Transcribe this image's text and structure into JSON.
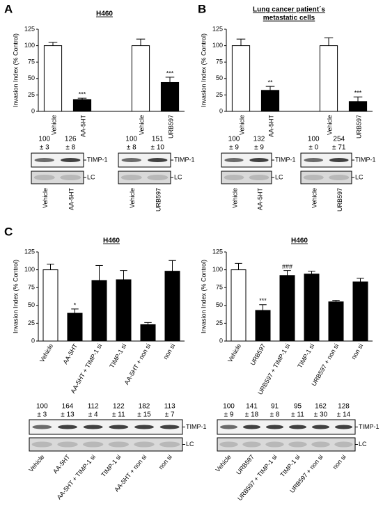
{
  "panel_labels": [
    "A",
    "B",
    "C"
  ],
  "chart_data": [
    {
      "type": "bar",
      "title": "H460",
      "ylabel": "Invasion Index (% Control)",
      "categories": [
        "Vehicle",
        "AA-5HT",
        null,
        "Vehicle",
        "URB597"
      ],
      "values": [
        100,
        18,
        null,
        100,
        44
      ],
      "errors": [
        5,
        2,
        null,
        10,
        8
      ],
      "colors": [
        "#ffffff",
        "#000000",
        null,
        "#ffffff",
        "#000000"
      ],
      "annotations": [
        null,
        "***",
        null,
        null,
        "***"
      ],
      "ylim": [
        0,
        125
      ],
      "yticks": [
        0,
        25,
        50,
        75,
        100,
        125
      ]
    },
    {
      "type": "bar",
      "title": [
        "Lung cancer patient´s",
        "metastatic cells"
      ],
      "ylabel": "Invasion Index (% Control)",
      "categories": [
        "Vehicle",
        "AA-5HT",
        null,
        "Vehicle",
        "URB597"
      ],
      "values": [
        100,
        32,
        null,
        100,
        15
      ],
      "errors": [
        10,
        6,
        null,
        12,
        7
      ],
      "colors": [
        "#ffffff",
        "#000000",
        null,
        "#ffffff",
        "#000000"
      ],
      "annotations": [
        null,
        "**",
        null,
        null,
        "***"
      ],
      "ylim": [
        0,
        125
      ],
      "yticks": [
        0,
        25,
        50,
        75,
        100,
        125
      ]
    },
    {
      "type": "bar",
      "title": "H460",
      "ylabel": "Invasion Index (% Control)",
      "categories": [
        "Vehicle",
        "AA-5HT",
        "AA-5HT + TIMP-1 si",
        "TIMP-1 si",
        "AA-5HT + non si",
        "non si"
      ],
      "values": [
        100,
        39,
        85,
        86,
        23,
        98
      ],
      "errors": [
        8,
        6,
        21,
        13,
        3,
        15
      ],
      "colors": [
        "#ffffff",
        "#000000",
        "#000000",
        "#000000",
        "#000000",
        "#000000"
      ],
      "annotations": [
        null,
        "*",
        null,
        null,
        null,
        null
      ],
      "ylim": [
        0,
        125
      ],
      "yticks": [
        0,
        25,
        50,
        75,
        100,
        125
      ]
    },
    {
      "type": "bar",
      "title": "H460",
      "ylabel": "Invasion Index (% Control)",
      "categories": [
        "Vehicle",
        "URB597",
        "URB597 + TIMP-1 si",
        "TIMP-1 si",
        "URB597 + non si",
        "non si"
      ],
      "values": [
        100,
        43,
        92,
        94,
        55,
        83
      ],
      "errors": [
        9,
        8,
        7,
        4,
        2,
        5
      ],
      "colors": [
        "#ffffff",
        "#000000",
        "#000000",
        "#000000",
        "#000000",
        "#000000"
      ],
      "annotations": [
        null,
        "***",
        "###",
        null,
        null,
        null
      ],
      "ylim": [
        0,
        125
      ],
      "yticks": [
        0,
        25,
        50,
        75,
        100,
        125
      ]
    }
  ],
  "blots": [
    {
      "lanes": [
        "Vehicle",
        "AA-5HT"
      ],
      "means": [
        100,
        126
      ],
      "sds": [
        "± 3",
        "± 8"
      ],
      "bands": [
        "TIMP-1",
        "LC"
      ]
    },
    {
      "lanes": [
        "Vehicle",
        "URB597"
      ],
      "means": [
        100,
        151
      ],
      "sds": [
        "± 8",
        "± 10"
      ],
      "bands": [
        "TIMP-1",
        "LC"
      ]
    },
    {
      "lanes": [
        "Vehicle",
        "AA-5HT"
      ],
      "means": [
        100,
        132
      ],
      "sds": [
        "± 9",
        "± 9"
      ],
      "bands": [
        "TIMP-1",
        "LC"
      ]
    },
    {
      "lanes": [
        "Vehicle",
        "URB597"
      ],
      "means": [
        100,
        254
      ],
      "sds": [
        "± 0",
        "± 71"
      ],
      "bands": [
        "TIMP-1",
        "LC"
      ]
    },
    {
      "lanes": [
        "Vehicle",
        "AA-5HT",
        "AA-5HT + TIMP-1 si",
        "TIMP-1 si",
        "AA-5HT + non si",
        "non si"
      ],
      "means": [
        100,
        164,
        112,
        122,
        182,
        113
      ],
      "sds": [
        "± 3",
        "± 13",
        "± 4",
        "± 11",
        "± 15",
        "± 7"
      ],
      "bands": [
        "TIMP-1",
        "LC"
      ]
    },
    {
      "lanes": [
        "Vehicle",
        "URB597",
        "URB597 + TIMP-1 si",
        "TIMP-1 si",
        "URB597 + non si",
        "non si"
      ],
      "means": [
        100,
        141,
        91,
        95,
        162,
        128
      ],
      "sds": [
        "± 9",
        "± 18",
        "± 8",
        "± 11",
        "± 30",
        "± 14"
      ],
      "bands": [
        "TIMP-1",
        "LC"
      ]
    }
  ]
}
